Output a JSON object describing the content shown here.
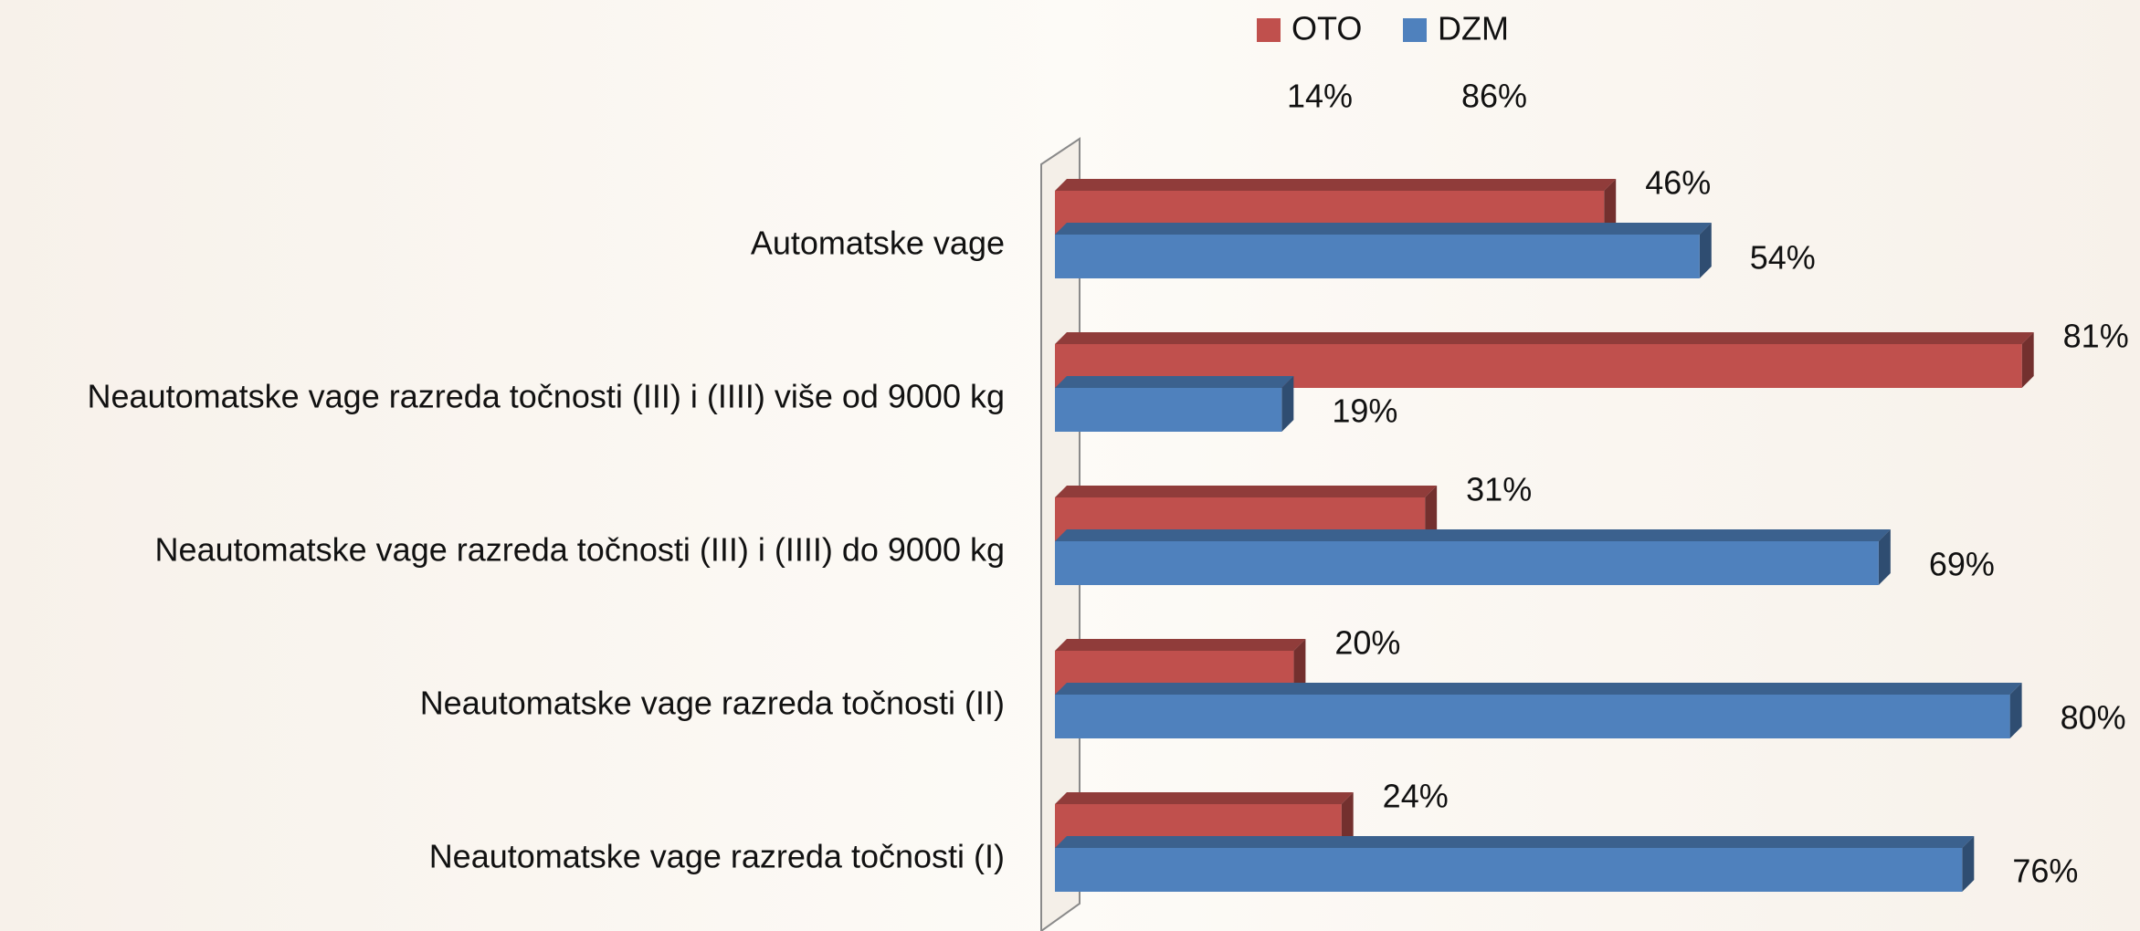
{
  "chart_data": {
    "type": "bar",
    "orientation": "horizontal",
    "categories": [
      "Automatske vage",
      "Neautomatske vage razreda točnosti (III) i (IIII) više od 9000 kg",
      "Neautomatske vage razreda točnosti (III) i (IIII) do 9000 kg",
      "Neautomatske vage razreda točnosti (II)",
      "Neautomatske vage razreda točnosti (I)"
    ],
    "series": [
      {
        "name": "OTO",
        "color": "#c0504d",
        "total": 14,
        "total_label": "14%",
        "values": [
          46,
          81,
          31,
          20,
          24
        ],
        "value_labels": [
          "46%",
          "81%",
          "31%",
          "20%",
          "24%"
        ]
      },
      {
        "name": "DZM",
        "color": "#4f81bd",
        "total": 86,
        "total_label": "86%",
        "values": [
          54,
          19,
          69,
          80,
          76
        ],
        "value_labels": [
          "54%",
          "19%",
          "69%",
          "80%",
          "76%"
        ]
      }
    ],
    "xlim": [
      0,
      100
    ]
  }
}
